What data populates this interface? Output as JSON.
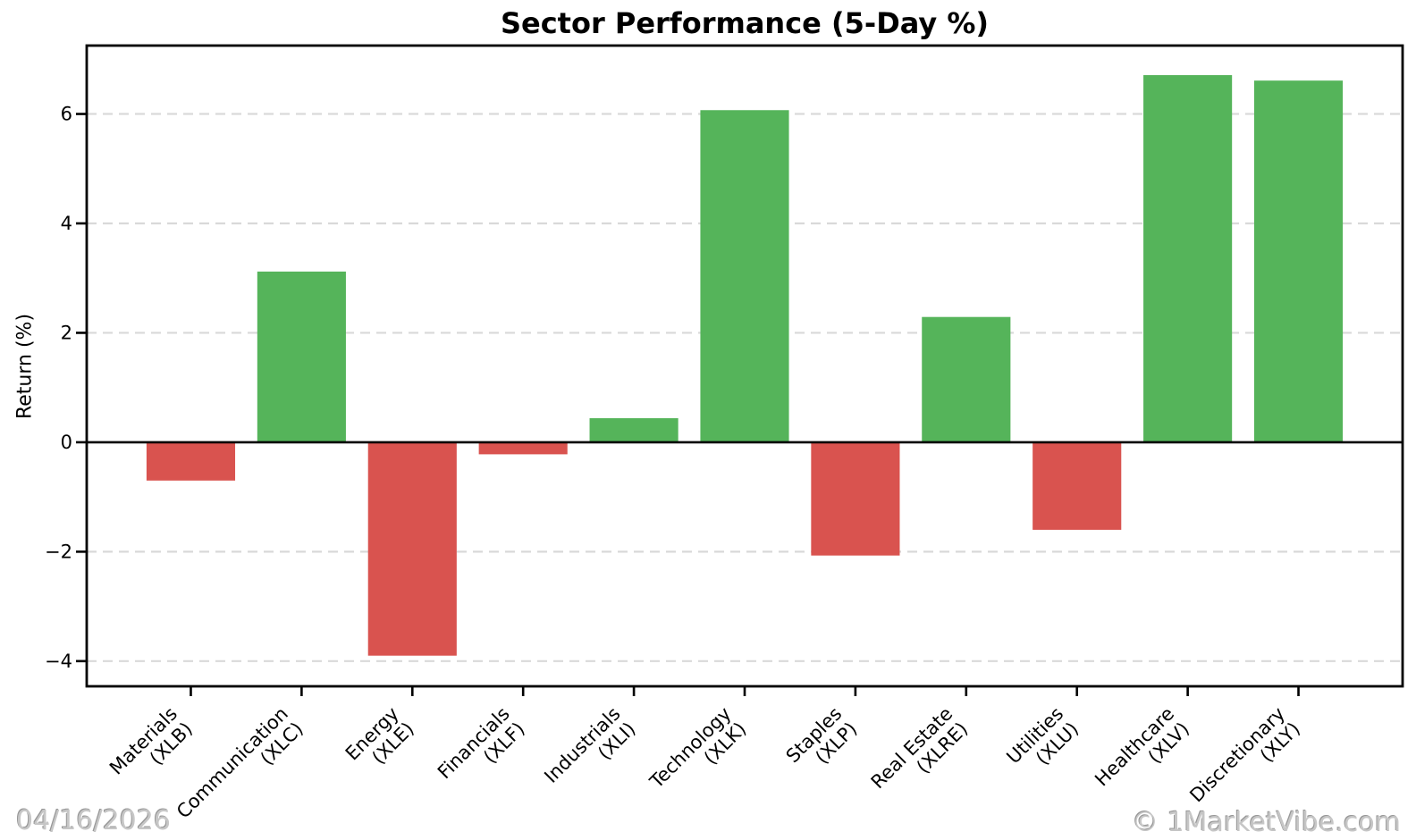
{
  "title": "Sector Performance (5-Day %)",
  "footer": {
    "date": "04/16/2026",
    "credit": "© 1MarketVibe.com"
  },
  "chart_data": {
    "type": "bar",
    "title": "Sector Performance (5-Day %)",
    "xlabel": "",
    "ylabel": "Return (%)",
    "categories": [
      "Materials\n(XLB)",
      "Communication\n(XLC)",
      "Energy\n(XLE)",
      "Financials\n(XLF)",
      "Industrials\n(XLI)",
      "Technology\n(XLK)",
      "Staples\n(XLP)",
      "Real Estate\n(XLRE)",
      "Utilities\n(XLU)",
      "Healthcare\n(XLV)",
      "Discretionary\n(XLY)"
    ],
    "values": [
      -0.7,
      3.12,
      -3.9,
      -0.22,
      0.44,
      6.07,
      -2.07,
      2.29,
      -1.6,
      6.71,
      6.61
    ],
    "yticks": [
      -4,
      -2,
      0,
      2,
      4,
      6
    ],
    "ytick_labels": [
      "−4",
      "−2",
      "0",
      "2",
      "4",
      "6"
    ],
    "ylim": [
      -4.46,
      7.25
    ],
    "xlim": [
      -0.94,
      10.94
    ],
    "bar_width": 0.8,
    "grid": {
      "axis": "y",
      "style": "dashed",
      "color": "#d9d9d9",
      "zero_line": "solid-black"
    },
    "colors": {
      "positive": "#55b45a",
      "negative": "#d9534f"
    },
    "legend": "none"
  }
}
